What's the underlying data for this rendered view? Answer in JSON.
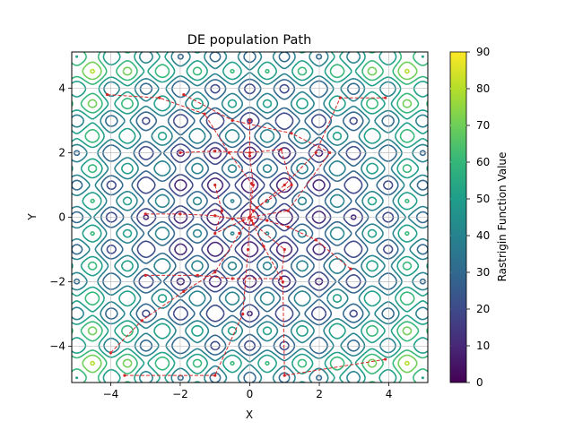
{
  "chart_data": {
    "type": "contour",
    "title": "DE population Path",
    "xlabel": "X",
    "ylabel": "Y",
    "colorbar_label": "Rastrigin Function Value",
    "xlim": [
      -5.12,
      5.12
    ],
    "ylim": [
      -5.12,
      5.12
    ],
    "x_ticks": [
      -4,
      -2,
      0,
      2,
      4
    ],
    "y_ticks": [
      -4,
      -2,
      0,
      2,
      4
    ],
    "colorbar_range": [
      0,
      90
    ],
    "colorbar_ticks": [
      0,
      10,
      20,
      30,
      40,
      50,
      60,
      70,
      80,
      90
    ],
    "contour_levels": [
      10,
      20,
      30,
      40,
      50,
      60,
      70,
      80
    ],
    "function": "Rastrigin: 20 + x^2 + y^2 - 10(cos(2πx) + cos(2πy))",
    "grid": true,
    "colormap": "viridis",
    "level_colors": [
      "#440154",
      "#482878",
      "#3e4a89",
      "#31688e",
      "#26828e",
      "#1f9e89",
      "#35b779",
      "#6ece58",
      "#b5de2b",
      "#fde725"
    ],
    "path_color": "#d62728",
    "path_style": "dashed",
    "paths": [
      {
        "points": [
          [
            -4.0,
            -4.2
          ],
          [
            -3.1,
            -3.2
          ],
          [
            -1.9,
            -2.3
          ],
          [
            -1.0,
            -1.7
          ],
          [
            -0.3,
            -0.5
          ],
          [
            0.0,
            0.0
          ]
        ]
      },
      {
        "points": [
          [
            -4.1,
            3.8
          ],
          [
            -2.6,
            3.7
          ],
          [
            -1.3,
            3.2
          ],
          [
            -0.6,
            2.0
          ],
          [
            0.05,
            1.05
          ],
          [
            0.0,
            0.0
          ]
        ]
      },
      {
        "points": [
          [
            3.9,
            3.7
          ],
          [
            2.6,
            3.7
          ],
          [
            1.9,
            2.0
          ],
          [
            1.0,
            1.0
          ],
          [
            0.1,
            0.2
          ],
          [
            0.0,
            0.0
          ]
        ]
      },
      {
        "points": [
          [
            3.9,
            -4.4
          ],
          [
            1.0,
            -4.9
          ],
          [
            0.95,
            -2.0
          ],
          [
            0.4,
            -0.9
          ],
          [
            0.05,
            -0.1
          ],
          [
            0.0,
            0.0
          ]
        ]
      },
      {
        "points": [
          [
            -3.6,
            -4.9
          ],
          [
            -1.0,
            -4.9
          ],
          [
            -0.2,
            -3.0
          ],
          [
            -0.05,
            -1.0
          ],
          [
            0.0,
            0.0
          ]
        ]
      },
      {
        "points": [
          [
            -2.0,
            2.0
          ],
          [
            -1.0,
            2.05
          ],
          [
            0.0,
            2.0
          ],
          [
            0.9,
            2.1
          ],
          [
            1.2,
            1.0
          ],
          [
            0.2,
            0.3
          ],
          [
            0.0,
            0.0
          ]
        ]
      },
      {
        "points": [
          [
            -3.0,
            0.1
          ],
          [
            -2.0,
            0.1
          ],
          [
            -1.0,
            0.05
          ],
          [
            -0.5,
            -0.05
          ],
          [
            0.0,
            0.0
          ]
        ]
      },
      {
        "points": [
          [
            2.9,
            -1.6
          ],
          [
            1.9,
            -0.7
          ],
          [
            1.1,
            -0.3
          ],
          [
            0.5,
            -0.1
          ],
          [
            0.0,
            0.0
          ]
        ]
      },
      {
        "points": [
          [
            -3.0,
            -1.8
          ],
          [
            -1.5,
            -1.8
          ],
          [
            -0.5,
            -1.9
          ],
          [
            0.9,
            -1.9
          ],
          [
            1.0,
            -1.0
          ],
          [
            0.1,
            -0.2
          ],
          [
            0.0,
            0.0
          ]
        ]
      },
      {
        "points": [
          [
            -1.9,
            3.8
          ],
          [
            -0.5,
            3.0
          ],
          [
            1.2,
            2.6
          ],
          [
            2.3,
            2.0
          ],
          [
            1.1,
            0.2
          ],
          [
            0.0,
            0.0
          ]
        ]
      },
      {
        "points": [
          [
            -1.0,
            1.0
          ],
          [
            -0.8,
            0.2
          ],
          [
            -1.0,
            -0.5
          ],
          [
            -0.2,
            -0.1
          ],
          [
            0.0,
            0.0
          ]
        ]
      },
      {
        "points": [
          [
            0.0,
            3.0
          ],
          [
            0.0,
            1.9
          ],
          [
            0.1,
            1.0
          ],
          [
            0.0,
            0.0
          ]
        ]
      }
    ]
  }
}
